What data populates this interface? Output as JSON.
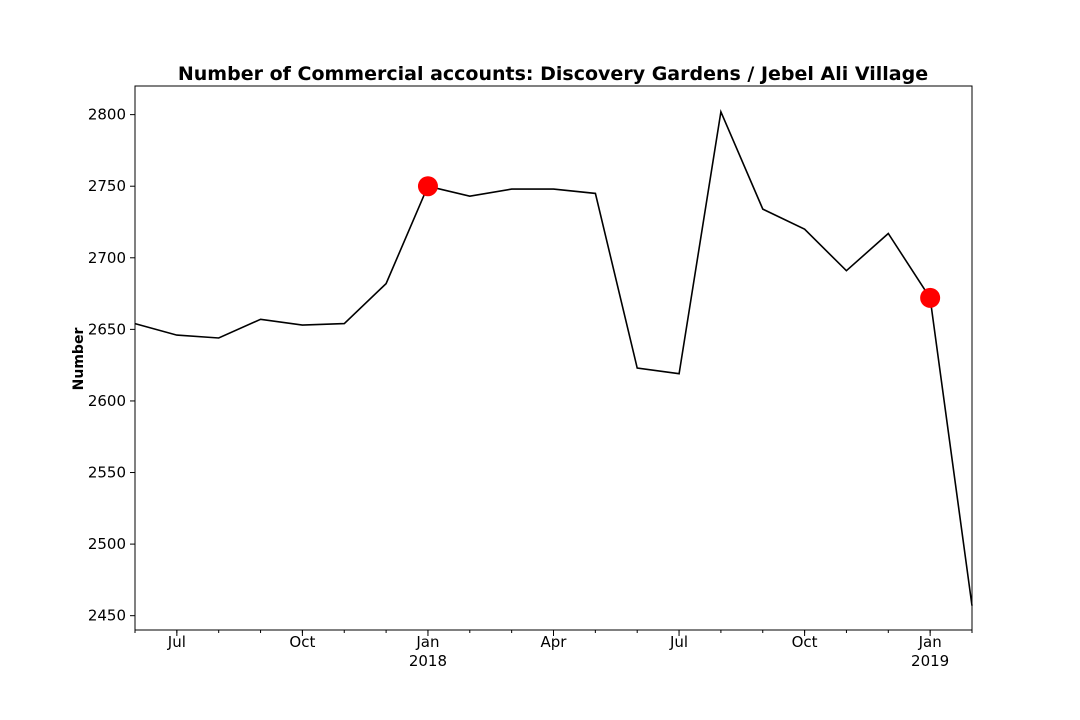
{
  "chart_data": {
    "type": "line",
    "title": "Number of Commercial accounts: Discovery Gardens / Jebel Ali Village",
    "xlabel": "",
    "ylabel": "Number",
    "x": [
      "2017-06",
      "2017-07",
      "2017-08",
      "2017-09",
      "2017-10",
      "2017-11",
      "2017-12",
      "2018-01",
      "2018-02",
      "2018-03",
      "2018-04",
      "2018-05",
      "2018-06",
      "2018-07",
      "2018-08",
      "2018-09",
      "2018-10",
      "2018-11",
      "2018-12",
      "2019-01",
      "2019-02"
    ],
    "series": [
      {
        "values": [
          2654,
          2646,
          2644,
          2657,
          2653,
          2654,
          2682,
          2750,
          2743,
          2748,
          2748,
          2745,
          2623,
          2619,
          2802,
          2734,
          2720,
          2691,
          2717,
          2672,
          2457
        ],
        "color": "#000000"
      }
    ],
    "highlights": [
      {
        "x": "2018-01",
        "y": 2750,
        "color": "#ff0000"
      },
      {
        "x": "2019-01",
        "y": 2672,
        "color": "#ff0000"
      }
    ],
    "ylim": [
      2440,
      2820
    ],
    "yticks": [
      "2450",
      "2500",
      "2550",
      "2600",
      "2650",
      "2700",
      "2750",
      "2800"
    ],
    "xticks": [
      {
        "x": "2017-07",
        "label": "Jul",
        "sublabel": ""
      },
      {
        "x": "2017-10",
        "label": "Oct",
        "sublabel": ""
      },
      {
        "x": "2018-01",
        "label": "Jan",
        "sublabel": "2018"
      },
      {
        "x": "2018-04",
        "label": "Apr",
        "sublabel": ""
      },
      {
        "x": "2018-07",
        "label": "Jul",
        "sublabel": ""
      },
      {
        "x": "2018-10",
        "label": "Oct",
        "sublabel": ""
      },
      {
        "x": "2019-01",
        "label": "Jan",
        "sublabel": "2019"
      }
    ],
    "grid": false,
    "legend": "none"
  }
}
